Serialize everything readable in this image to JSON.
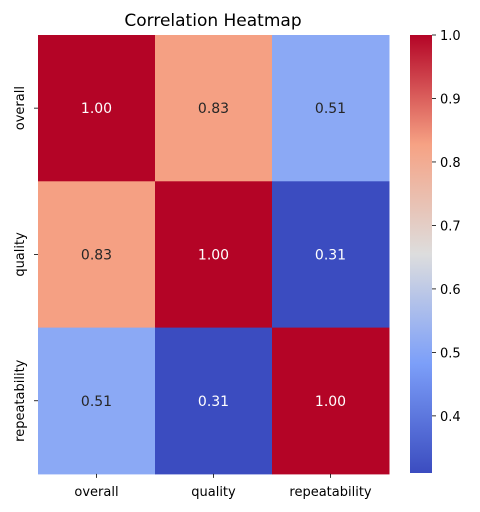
{
  "chart_data": {
    "type": "heatmap",
    "title": "Correlation Heatmap",
    "x_labels": [
      "overall",
      "quality",
      "repeatability"
    ],
    "y_labels": [
      "overall",
      "quality",
      "repeatability"
    ],
    "values": [
      [
        1.0,
        0.83,
        0.51
      ],
      [
        0.83,
        1.0,
        0.31
      ],
      [
        0.51,
        0.31,
        1.0
      ]
    ],
    "annotations": [
      [
        "1.00",
        "0.83",
        "0.51"
      ],
      [
        "0.83",
        "1.00",
        "0.31"
      ],
      [
        "0.51",
        "0.31",
        "1.00"
      ]
    ],
    "colormap": "coolwarm",
    "colorbar": {
      "min": 0.31,
      "max": 1.0,
      "ticks": [
        0.4,
        0.5,
        0.6,
        0.7,
        0.8,
        0.9,
        1.0
      ],
      "tick_labels": [
        "0.4",
        "0.5",
        "0.6",
        "0.7",
        "0.8",
        "0.9",
        "1.0"
      ]
    }
  }
}
